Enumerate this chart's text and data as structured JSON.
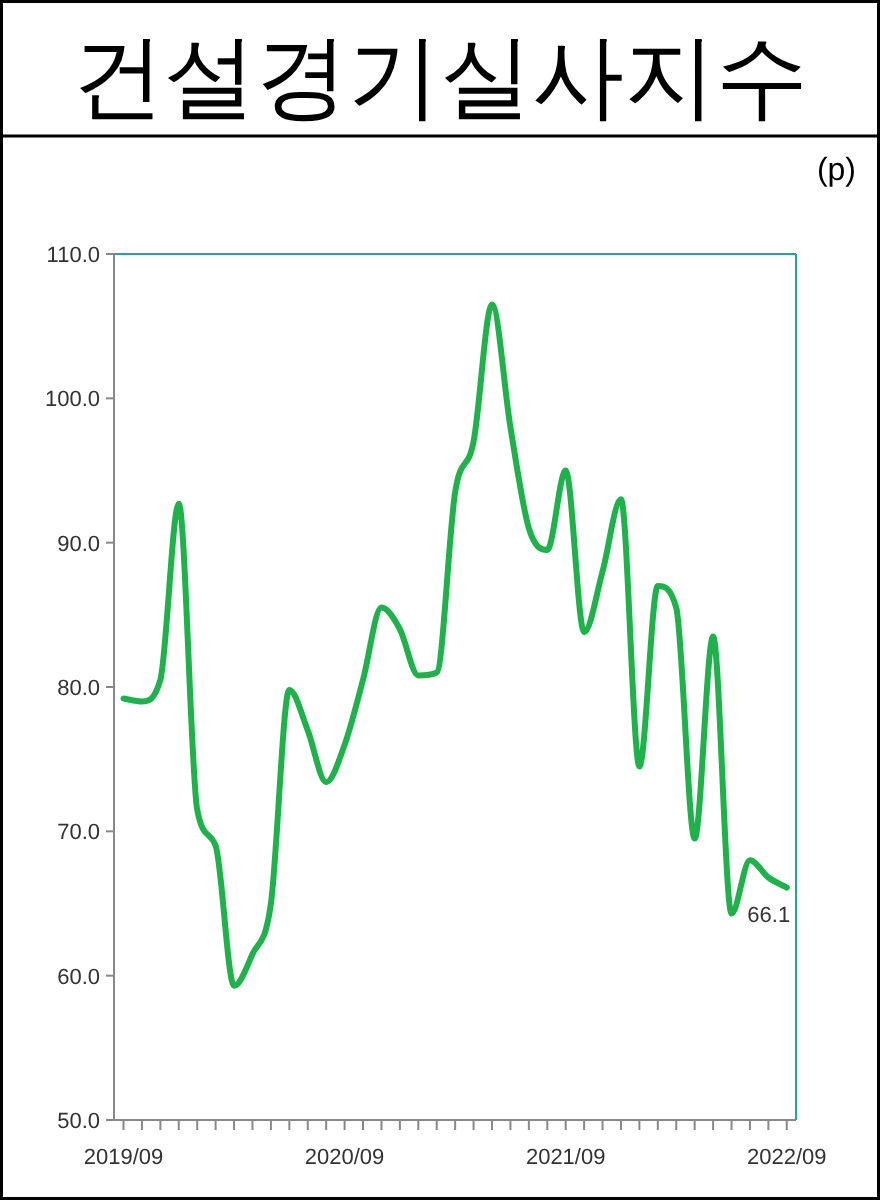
{
  "chart_data": {
    "type": "line",
    "title": "건설경기실사지수",
    "ylabel": "(p)",
    "x": [
      "2019-09",
      "2019-10",
      "2019-11",
      "2019-12",
      "2020-01",
      "2020-02",
      "2020-03",
      "2020-04",
      "2020-05",
      "2020-06",
      "2020-07",
      "2020-08",
      "2020-09",
      "2020-10",
      "2020-11",
      "2020-12",
      "2021-01",
      "2021-02",
      "2021-03",
      "2021-04",
      "2021-05",
      "2021-06",
      "2021-07",
      "2021-08",
      "2021-09",
      "2021-10",
      "2021-11",
      "2021-12",
      "2022-01",
      "2022-02",
      "2022-03",
      "2022-04",
      "2022-05",
      "2022-06",
      "2022-07",
      "2022-08",
      "2022-09"
    ],
    "series": [
      {
        "color": "#1db34a",
        "values": [
          79.2,
          79.0,
          80.5,
          92.7,
          71.5,
          69.0,
          59.3,
          61.5,
          65.0,
          79.8,
          77.0,
          73.4,
          76.0,
          80.5,
          85.5,
          84.0,
          80.8,
          81.0,
          93.5,
          97.0,
          106.5,
          98.0,
          91.0,
          89.5,
          95.0,
          83.8,
          88.0,
          93.0,
          74.5,
          87.0,
          85.5,
          69.5,
          83.5,
          64.3,
          68.0,
          66.8,
          66.1
        ],
        "value_labels": [
          null,
          null,
          null,
          null,
          null,
          null,
          null,
          null,
          null,
          null,
          null,
          null,
          null,
          null,
          null,
          null,
          null,
          null,
          null,
          null,
          null,
          null,
          null,
          null,
          null,
          null,
          null,
          null,
          null,
          null,
          null,
          null,
          null,
          null,
          null,
          null,
          "66.1"
        ]
      }
    ],
    "xlim": [
      "2019-08-16",
      "2022-09-16"
    ],
    "xticks": [
      {
        "value": "2019-09",
        "label": "2019/09"
      },
      {
        "value": "2019-10",
        "label": null
      },
      {
        "value": "2019-11",
        "label": null
      },
      {
        "value": "2019-12",
        "label": null
      },
      {
        "value": "2020-01",
        "label": null
      },
      {
        "value": "2020-02",
        "label": null
      },
      {
        "value": "2020-03",
        "label": null
      },
      {
        "value": "2020-04",
        "label": null
      },
      {
        "value": "2020-05",
        "label": null
      },
      {
        "value": "2020-06",
        "label": null
      },
      {
        "value": "2020-07",
        "label": null
      },
      {
        "value": "2020-08",
        "label": null
      },
      {
        "value": "2020-09",
        "label": "2020/09"
      },
      {
        "value": "2020-10",
        "label": null
      },
      {
        "value": "2020-11",
        "label": null
      },
      {
        "value": "2020-12",
        "label": null
      },
      {
        "value": "2021-01",
        "label": null
      },
      {
        "value": "2021-02",
        "label": null
      },
      {
        "value": "2021-03",
        "label": null
      },
      {
        "value": "2021-04",
        "label": null
      },
      {
        "value": "2021-05",
        "label": null
      },
      {
        "value": "2021-06",
        "label": null
      },
      {
        "value": "2021-07",
        "label": null
      },
      {
        "value": "2021-08",
        "label": null
      },
      {
        "value": "2021-09",
        "label": "2021/09"
      },
      {
        "value": "2021-10",
        "label": null
      },
      {
        "value": "2021-11",
        "label": null
      },
      {
        "value": "2021-12",
        "label": null
      },
      {
        "value": "2022-01",
        "label": null
      },
      {
        "value": "2022-02",
        "label": null
      },
      {
        "value": "2022-03",
        "label": null
      },
      {
        "value": "2022-04",
        "label": null
      },
      {
        "value": "2022-05",
        "label": null
      },
      {
        "value": "2022-06",
        "label": null
      },
      {
        "value": "2022-07",
        "label": null
      },
      {
        "value": "2022-08",
        "label": null
      },
      {
        "value": "2022-09",
        "label": "2022/09"
      }
    ],
    "ylim": [
      50,
      110
    ],
    "yticks": [
      {
        "value": 50,
        "label": "50.0"
      },
      {
        "value": 60,
        "label": "60.0"
      },
      {
        "value": 70,
        "label": "70.0"
      },
      {
        "value": 80,
        "label": "80.0"
      },
      {
        "value": 90,
        "label": "90.0"
      },
      {
        "value": 100,
        "label": "100.0"
      },
      {
        "value": 110,
        "label": "110.0"
      }
    ],
    "grid": false,
    "marker": "none",
    "line_style": "solid"
  }
}
